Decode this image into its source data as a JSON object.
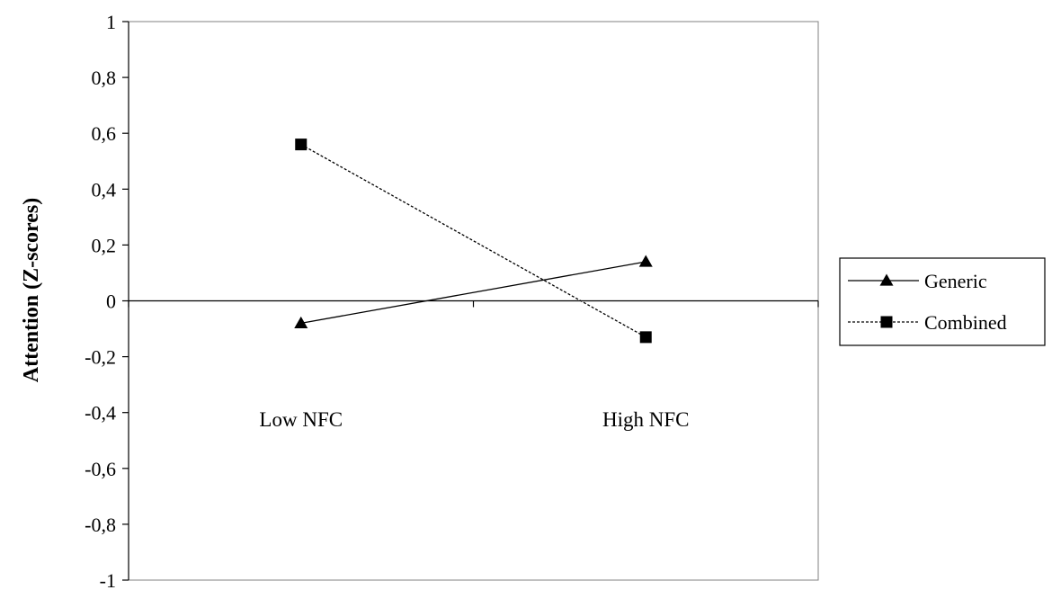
{
  "chart_data": {
    "type": "line",
    "title": "",
    "xlabel": "",
    "ylabel": "Attention (Z-scores)",
    "categories": [
      "Low NFC",
      "High NFC"
    ],
    "ylim": [
      -1,
      1
    ],
    "yticks": [
      1,
      0.8,
      0.6,
      0.4,
      0.2,
      0,
      -0.2,
      -0.4,
      -0.6,
      -0.8,
      -1
    ],
    "ytick_labels": [
      "1",
      "0,8",
      "0,6",
      "0,4",
      "0,2",
      "0",
      "-0,2",
      "-0,4",
      "-0,6",
      "-0,8",
      "-1"
    ],
    "grid": false,
    "legend_position": "right",
    "series": [
      {
        "name": "Generic",
        "values": [
          -0.08,
          0.14
        ],
        "marker": "triangle",
        "line_style": "solid",
        "color": "#000000"
      },
      {
        "name": "Combined",
        "values": [
          0.56,
          -0.13
        ],
        "marker": "square",
        "line_style": "dashed",
        "color": "#000000"
      }
    ]
  }
}
